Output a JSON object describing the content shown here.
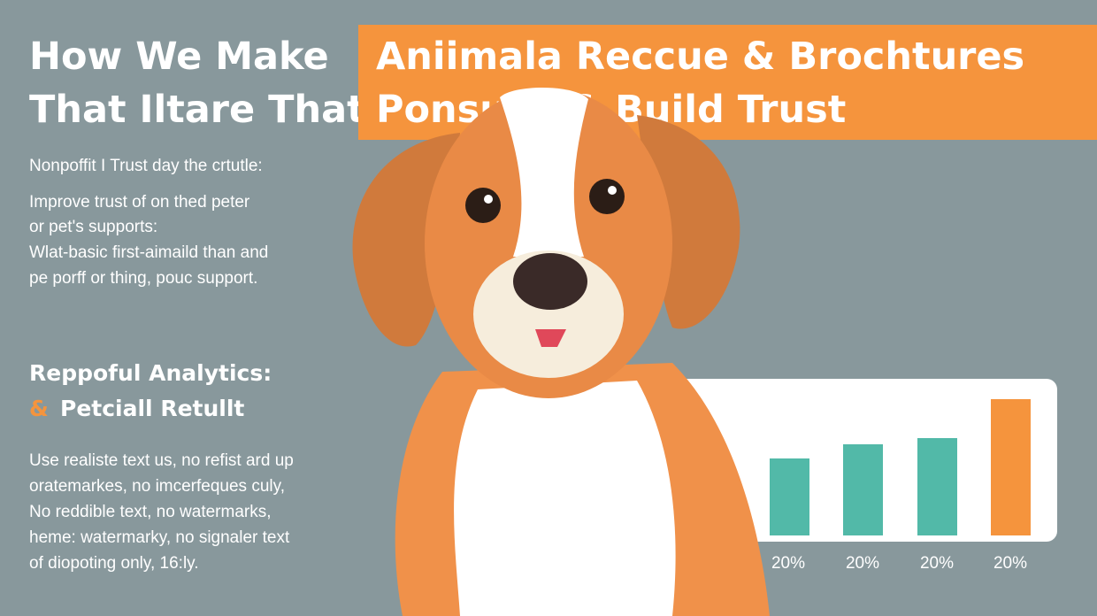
{
  "header": {
    "title": [
      "How We Make",
      "That Iltare That"
    ]
  },
  "banner": {
    "title": [
      "Aniimala Reccue & Brochtures",
      "Ponsuse & Build Trust"
    ]
  },
  "intro": {
    "lead": "Nonpoffit I Trust day the crtutle:",
    "lines": [
      "Improve trust of on thed peter",
      "or pet's supports:",
      "Wlat-basic first-aimaild than and",
      "pe porff or thing, pouc support."
    ]
  },
  "section": {
    "heading": "Reppoful Analytics:",
    "amp": "&",
    "heading2": "Petciall Retullt",
    "lines": [
      "Use realiste text us, no refist ard up",
      "oratemarkes, no imcerfeques culy,",
      "No reddible text, no watermarks,",
      "heme: watermarky, no signaler text",
      "of diopoting only, 16:ly."
    ]
  },
  "chart": {
    "labels": [
      "20%",
      "20%",
      "20%",
      "20%"
    ]
  }
}
